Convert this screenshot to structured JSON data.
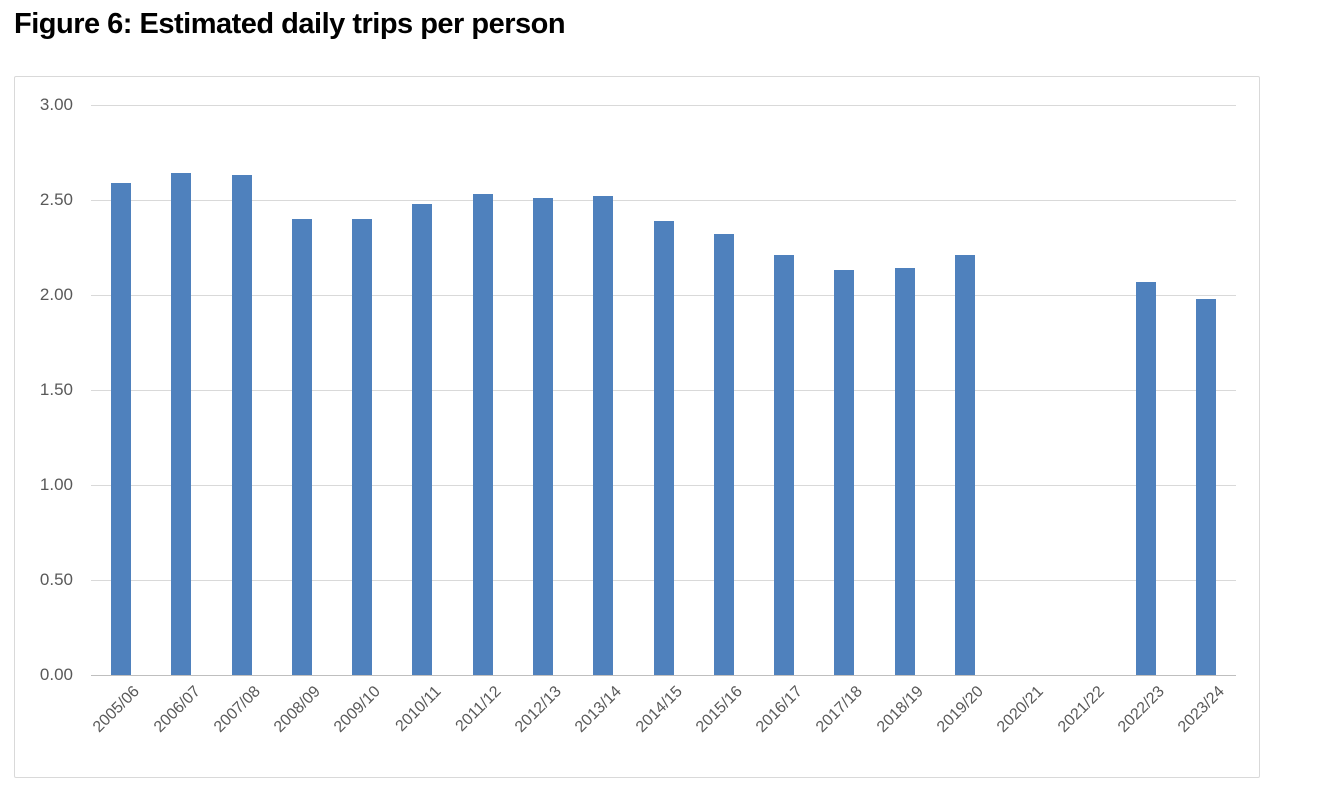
{
  "title": "Figure 6: Estimated daily trips per person",
  "colors": {
    "bar": "#4f81bd",
    "gridline": "#d9d9d9",
    "axis_line": "#bfbfbf",
    "tick_label": "#595959",
    "chart_border": "#d9d9d9",
    "title": "#000000",
    "background": "#ffffff"
  },
  "chart_data": {
    "type": "bar",
    "title": "Figure 6: Estimated daily trips per person",
    "xlabel": "",
    "ylabel": "",
    "ylim": [
      0,
      3.0
    ],
    "y_tick_step": 0.5,
    "y_ticks": [
      "3.00",
      "2.50",
      "2.00",
      "1.50",
      "1.00",
      "0.50",
      "0.00"
    ],
    "grid": "horizontal",
    "legend": "none",
    "categories": [
      "2005/06",
      "2006/07",
      "2007/08",
      "2008/09",
      "2009/10",
      "2010/11",
      "2011/12",
      "2012/13",
      "2013/14",
      "2014/15",
      "2015/16",
      "2016/17",
      "2017/18",
      "2018/19",
      "2019/20",
      "2020/21",
      "2021/22",
      "2022/23",
      "2023/24"
    ],
    "values": [
      2.59,
      2.64,
      2.63,
      2.4,
      2.4,
      2.48,
      2.53,
      2.51,
      2.52,
      2.39,
      2.32,
      2.21,
      2.13,
      2.14,
      2.21,
      null,
      null,
      2.07,
      1.98
    ]
  }
}
